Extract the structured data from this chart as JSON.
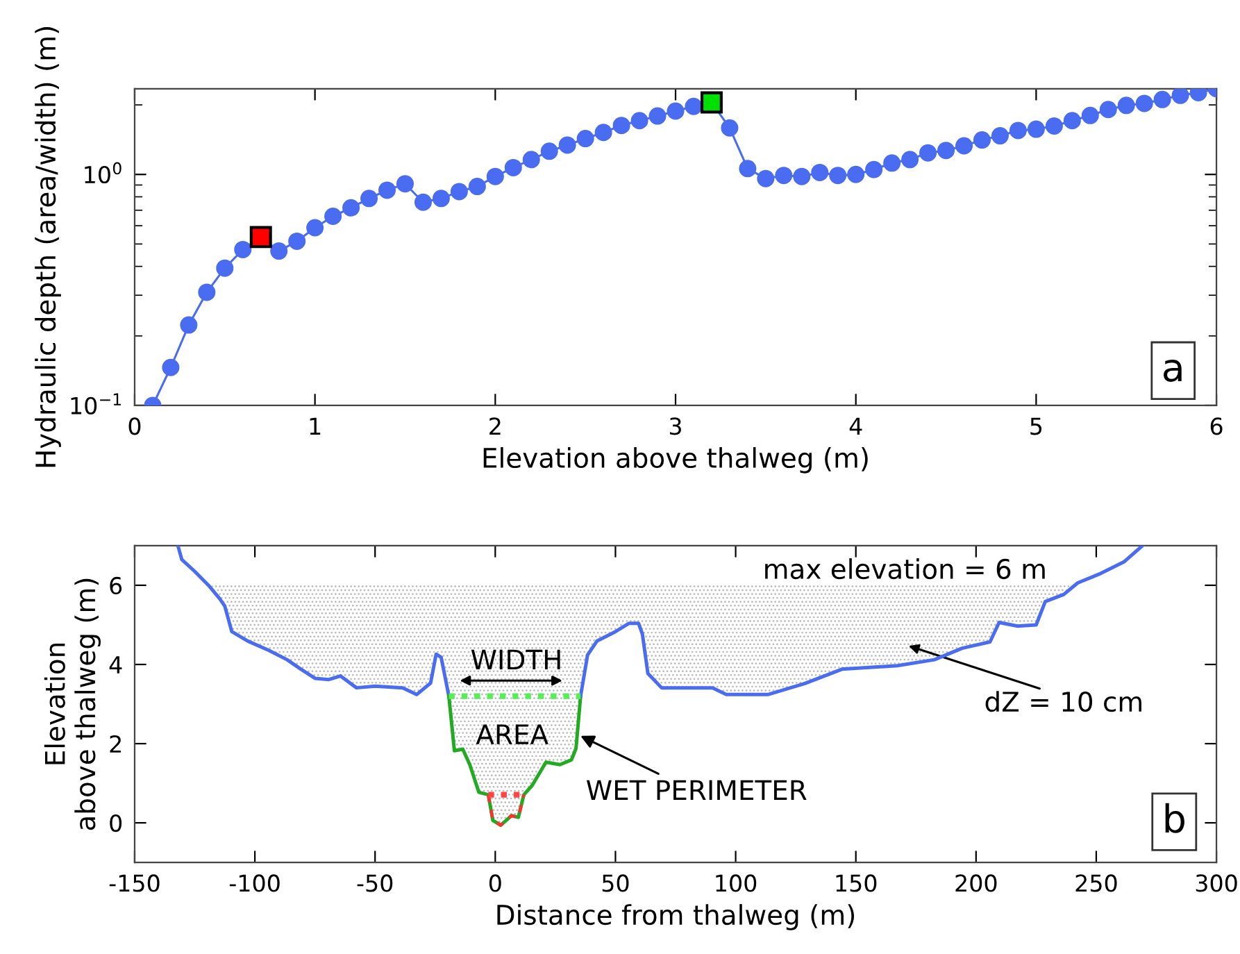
{
  "chart_data": [
    {
      "type": "line",
      "xlabel": "Elevation above thalweg (m)",
      "ylabel": "Hydraulic depth (area/width) (m)",
      "log": "y",
      "x": [
        0.1,
        0.2,
        0.3,
        0.4,
        0.5,
        0.6,
        0.7,
        0.8,
        0.9,
        1.0,
        1.1,
        1.2,
        1.3,
        1.4,
        1.5,
        1.6,
        1.7,
        1.8,
        1.9,
        2.0,
        2.1,
        2.2,
        2.3,
        2.4,
        2.5,
        2.6,
        2.7,
        2.8,
        2.9,
        3.0,
        3.1,
        3.2,
        3.3,
        3.4,
        3.5,
        3.6,
        3.7,
        3.8,
        3.9,
        4.0,
        4.1,
        4.2,
        4.3,
        4.4,
        4.5,
        4.6,
        4.7,
        4.8,
        4.9,
        5.0,
        5.1,
        5.2,
        5.3,
        5.4,
        5.5,
        5.6,
        5.7,
        5.8,
        5.9,
        6.0
      ],
      "series": [
        {
          "color": "#4a6cf0",
          "marker": "circle",
          "values": [
            0.1,
            0.146,
            0.223,
            0.309,
            0.393,
            0.473,
            0.536,
            0.466,
            0.514,
            0.588,
            0.659,
            0.717,
            0.787,
            0.855,
            0.911,
            0.758,
            0.787,
            0.843,
            0.887,
            0.98,
            1.07,
            1.16,
            1.26,
            1.34,
            1.43,
            1.52,
            1.63,
            1.71,
            1.79,
            1.88,
            1.97,
            2.05,
            1.59,
            1.06,
            0.96,
            0.99,
            0.98,
            1.02,
            0.99,
            1.0,
            1.05,
            1.12,
            1.16,
            1.24,
            1.27,
            1.33,
            1.41,
            1.47,
            1.55,
            1.57,
            1.62,
            1.71,
            1.8,
            1.91,
            1.99,
            2.03,
            2.11,
            2.2,
            2.26,
            2.35
          ]
        },
        {
          "type": "scatter",
          "color": "#ff0000",
          "marker": "square",
          "x": [
            0.7
          ],
          "values": [
            0.536
          ]
        },
        {
          "type": "scatter",
          "color": "#00e000",
          "marker": "square",
          "x": [
            3.2
          ],
          "values": [
            2.05
          ]
        }
      ],
      "xlim": [
        0,
        6
      ],
      "xticks": [
        0,
        1,
        2,
        3,
        4,
        5,
        6
      ],
      "ylim": [
        0.1,
        2.35
      ],
      "yticks": [
        {
          "value": 0.1,
          "label": "10$^{−1}$"
        },
        {
          "value": 1,
          "label": "10$^{0}$"
        }
      ],
      "annotations": [
        "a"
      ]
    },
    {
      "type": "line",
      "xlabel": "Distance from thalweg (m)",
      "ylabel": "Elevation\nabove thalweg (m)",
      "series": [
        {
          "type": "area",
          "color": "#b8b8b8",
          "x": [
            -119.3,
            -114.5,
            -112.5,
            -109.6,
            -102.9,
            -94.3,
            -86.6,
            -80.8,
            -75,
            -69.2,
            -64.4,
            -57.7,
            -50,
            -38.5,
            -32.7,
            -26.9,
            -24.6,
            -22.5,
            -19.3,
            -17,
            -13.5,
            -10.6,
            -6.8,
            -2.9,
            -1,
            2.3,
            6.7,
            9.6,
            11.9,
            15.3,
            21.1,
            26.9,
            31.7,
            33.6,
            35.5,
            38.4,
            42.3,
            50,
            55.7,
            59.6,
            61.2,
            63.5,
            69.2,
            90.4,
            96.1,
            113.4,
            128.8,
            144.2,
            167.3,
            182.7,
            194.2,
            205.8,
            209.6,
            217.3,
            225,
            228.8,
            236.5,
            242.3
          ],
          "values": [
            6,
            6,
            6,
            6,
            6,
            6,
            6,
            6,
            6,
            6,
            6,
            6,
            6,
            6,
            6,
            6,
            6,
            6,
            6,
            6,
            6,
            6,
            6,
            6,
            6,
            6,
            6,
            6,
            6,
            6,
            6,
            6,
            6,
            6,
            6,
            6,
            6,
            6,
            6,
            6,
            6,
            6,
            6,
            6,
            6,
            6,
            6,
            6,
            6,
            6,
            6,
            6,
            6,
            6,
            6,
            6,
            6,
            6
          ]
        },
        {
          "color": "#4a6cf0",
          "x": [
            -132,
            -130.4,
            -125,
            -119.3,
            -114.5,
            -112.5,
            -109.6,
            -102.9,
            -94.3,
            -86.6,
            -80.8,
            -75,
            -69.2,
            -64.4,
            -57.7,
            -50,
            -38.5,
            -32.7,
            -26.9,
            -24.6,
            -22.5,
            -19.3
          ],
          "values": [
            7.0,
            6.65,
            6.35,
            6.0,
            5.65,
            5.47,
            4.83,
            4.59,
            4.36,
            4.12,
            3.88,
            3.65,
            3.62,
            3.71,
            3.41,
            3.45,
            3.41,
            3.24,
            3.53,
            4.26,
            4.18,
            3.2
          ]
        },
        {
          "color": "#22aa22",
          "x": [
            -19.3,
            -17,
            -13.5,
            -10.6,
            -6.8,
            -2.9,
            -1,
            2.3,
            6.7,
            9.6,
            11.9,
            15.3,
            21.1,
            26.9,
            31.7,
            33.6,
            35.5
          ],
          "values": [
            3.2,
            1.82,
            1.86,
            1.47,
            0.77,
            0.71,
            0.06,
            -0.06,
            0.18,
            0.14,
            0.71,
            0.94,
            1.53,
            1.47,
            1.59,
            1.88,
            3.2
          ]
        },
        {
          "color": "#4a6cf0",
          "x": [
            35.5,
            38.4,
            42.3,
            50,
            55.7,
            59.6,
            61.2,
            63.5,
            69.2,
            90.4,
            96.1,
            113.4,
            128.8,
            144.2,
            167.3,
            182.7,
            194.2,
            205.8,
            209.6,
            217.3,
            225,
            228.8,
            236.5,
            242.3,
            251.9,
            261.5,
            269.2
          ],
          "values": [
            3.2,
            4.24,
            4.59,
            4.83,
            5.04,
            5.04,
            4.77,
            3.77,
            3.41,
            3.41,
            3.24,
            3.24,
            3.52,
            3.88,
            3.97,
            4.12,
            4.41,
            4.57,
            5.06,
            4.97,
            5.0,
            5.59,
            5.77,
            6.06,
            6.3,
            6.59,
            7.0
          ]
        },
        {
          "color": "#ff3030",
          "line_style": "dashed",
          "x": [
            -2.9,
            -1,
            2.3,
            6.7,
            9.6,
            11.9
          ],
          "values": [
            0.71,
            0.06,
            -0.06,
            0.18,
            0.14,
            0.71
          ]
        },
        {
          "color": "#55ee55",
          "line_style": "dotted",
          "x": [
            -19.3,
            35.5
          ],
          "values": [
            3.2,
            3.2
          ]
        },
        {
          "color": "#ff4444",
          "line_style": "dotted",
          "x": [
            -2.9,
            11.9
          ],
          "values": [
            0.71,
            0.71
          ]
        }
      ],
      "xlim": [
        -150,
        300
      ],
      "xticks": [
        -150,
        -100,
        -50,
        0,
        50,
        100,
        150,
        200,
        250,
        300
      ],
      "ylim": [
        -1,
        7
      ],
      "yticks": [
        0,
        2,
        4,
        6
      ],
      "annotations": [
        "WIDTH",
        "AREA",
        "max elevation = 6 m",
        {
          "text": "WET PERIMETER",
          "x": 34,
          "y": 2.24
        },
        "dZ = 10 cm",
        "b"
      ]
    }
  ]
}
